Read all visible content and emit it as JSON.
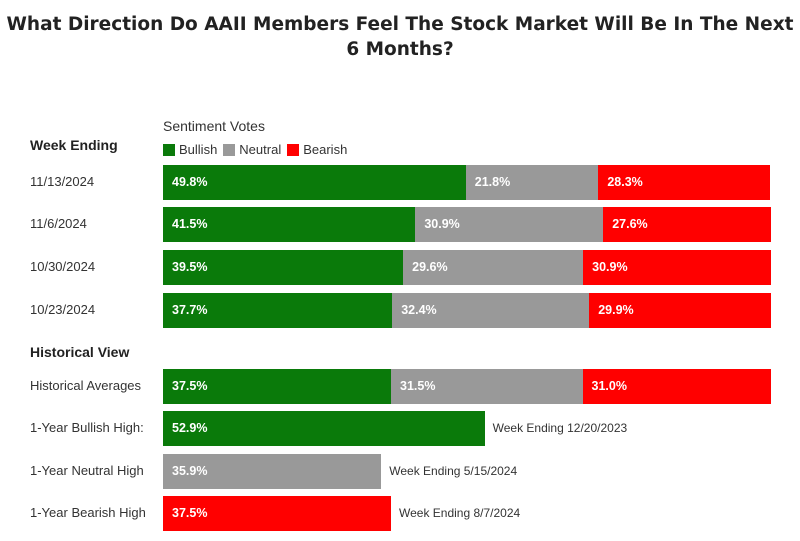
{
  "title_line1": "What Direction Do AAII Members Feel The Stock Market Will Be In The Next",
  "title_line2": "6 Months?",
  "legend_title": "Sentiment Votes",
  "colors": {
    "bullish": "#0a7a0a",
    "neutral": "#999999",
    "bearish": "#ff0000"
  },
  "chart_data": {
    "type": "bar",
    "orientation": "horizontal",
    "stacked": true,
    "title": "What Direction Do AAII Members Feel The Stock Market Will Be In The Next 6 Months?",
    "legend": [
      {
        "key": "bullish",
        "label": "Bullish"
      },
      {
        "key": "neutral",
        "label": "Neutral"
      },
      {
        "key": "bearish",
        "label": "Bearish"
      }
    ],
    "sections": [
      {
        "heading": "Week Ending",
        "rows": [
          {
            "label": "11/13/2024",
            "segments": [
              {
                "key": "bullish",
                "value": 49.8,
                "label": "49.8%"
              },
              {
                "key": "neutral",
                "value": 21.8,
                "label": "21.8%"
              },
              {
                "key": "bearish",
                "value": 28.3,
                "label": "28.3%"
              }
            ]
          },
          {
            "label": "11/6/2024",
            "segments": [
              {
                "key": "bullish",
                "value": 41.5,
                "label": "41.5%"
              },
              {
                "key": "neutral",
                "value": 30.9,
                "label": "30.9%"
              },
              {
                "key": "bearish",
                "value": 27.6,
                "label": "27.6%"
              }
            ]
          },
          {
            "label": "10/30/2024",
            "segments": [
              {
                "key": "bullish",
                "value": 39.5,
                "label": "39.5%"
              },
              {
                "key": "neutral",
                "value": 29.6,
                "label": "29.6%"
              },
              {
                "key": "bearish",
                "value": 30.9,
                "label": "30.9%"
              }
            ]
          },
          {
            "label": "10/23/2024",
            "segments": [
              {
                "key": "bullish",
                "value": 37.7,
                "label": "37.7%"
              },
              {
                "key": "neutral",
                "value": 32.4,
                "label": "32.4%"
              },
              {
                "key": "bearish",
                "value": 29.9,
                "label": "29.9%"
              }
            ]
          }
        ]
      },
      {
        "heading": "Historical View",
        "rows": [
          {
            "label": "Historical Averages",
            "segments": [
              {
                "key": "bullish",
                "value": 37.5,
                "label": "37.5%"
              },
              {
                "key": "neutral",
                "value": 31.5,
                "label": "31.5%"
              },
              {
                "key": "bearish",
                "value": 31.0,
                "label": "31.0%"
              }
            ]
          },
          {
            "label": "1-Year Bullish High:",
            "segments": [
              {
                "key": "bullish",
                "value": 52.9,
                "label": "52.9%"
              }
            ],
            "note": "Week Ending 12/20/2023"
          },
          {
            "label": "1-Year Neutral High",
            "segments": [
              {
                "key": "neutral",
                "value": 35.9,
                "label": "35.9%"
              }
            ],
            "note": "Week Ending 5/15/2024"
          },
          {
            "label": "1-Year Bearish High",
            "segments": [
              {
                "key": "bearish",
                "value": 37.5,
                "label": "37.5%"
              }
            ],
            "note": "Week Ending 8/7/2024"
          }
        ]
      }
    ]
  }
}
